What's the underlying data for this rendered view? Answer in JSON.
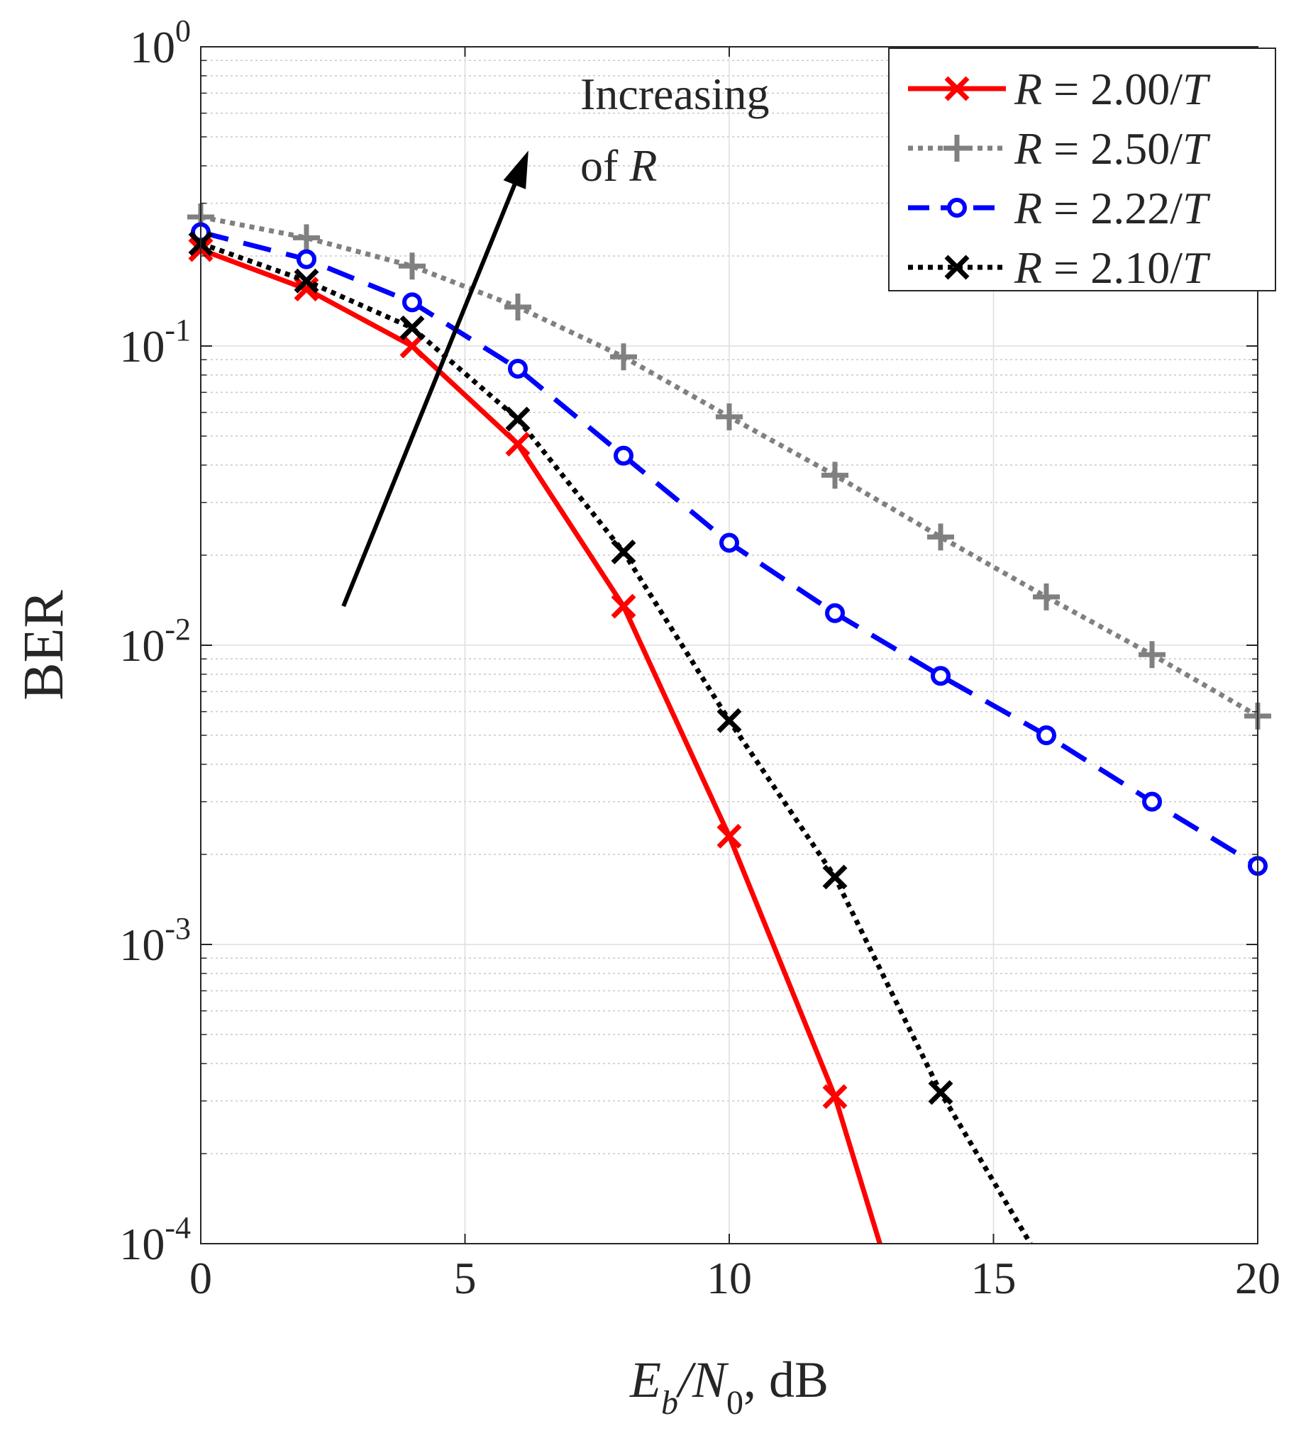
{
  "chart_data": {
    "type": "line",
    "title": "",
    "xlabel": {
      "main": "E",
      "sub1": "b",
      "slash": "/N",
      "sub2": "0",
      "unit": ", dB"
    },
    "ylabel": "BER",
    "xlim": [
      0,
      20
    ],
    "ylim": [
      0.0001,
      1
    ],
    "yscale": "log",
    "grid": true,
    "x_ticks": [
      "0",
      "5",
      "10",
      "15",
      "20"
    ],
    "x_tick_values": [
      0,
      5,
      10,
      15,
      20
    ],
    "y_ticks": [
      {
        "base": "10",
        "exp": "0",
        "value": 1
      },
      {
        "base": "10",
        "exp": "-1",
        "value": 0.1
      },
      {
        "base": "10",
        "exp": "-2",
        "value": 0.01
      },
      {
        "base": "10",
        "exp": "-3",
        "value": 0.001
      },
      {
        "base": "10",
        "exp": "-4",
        "value": 0.0001
      }
    ],
    "legend_position": "top-right",
    "annotation": {
      "line1": "Increasing",
      "line2_prefix": "of ",
      "line2_var": "R",
      "from": [
        2.7,
        0.0135
      ],
      "to": [
        6.2,
        0.45
      ]
    },
    "series": [
      {
        "name": "R = 2.00/T",
        "var": "R",
        "mid": " = 2.00/",
        "unit": "T",
        "color": "#ff0000",
        "dash": "solid",
        "marker": "x",
        "x": [
          0,
          2,
          4,
          6,
          8,
          10,
          12,
          12.85
        ],
        "y": [
          0.21,
          0.155,
          0.1,
          0.047,
          0.0135,
          0.0023,
          0.00031,
          0.0001
        ],
        "marked": [
          true,
          true,
          true,
          true,
          true,
          true,
          true,
          false
        ]
      },
      {
        "name": "R = 2.50/T",
        "var": "R",
        "mid": " = 2.50/",
        "unit": "T",
        "color": "#808080",
        "dash": "dotted",
        "marker": "+",
        "x": [
          0,
          2,
          4,
          6,
          8,
          10,
          12,
          14,
          16,
          18,
          20
        ],
        "y": [
          0.27,
          0.23,
          0.185,
          0.135,
          0.092,
          0.058,
          0.037,
          0.023,
          0.0145,
          0.0093,
          0.0058
        ],
        "marked": [
          true,
          true,
          true,
          true,
          true,
          true,
          true,
          true,
          true,
          true,
          true
        ]
      },
      {
        "name": "R = 2.22/T",
        "var": "R",
        "mid": " = 2.22/",
        "unit": "T",
        "color": "#0000ff",
        "dash": "dashed",
        "marker": "o",
        "x": [
          0,
          2,
          4,
          6,
          8,
          10,
          12,
          14,
          16,
          18,
          20
        ],
        "y": [
          0.24,
          0.195,
          0.14,
          0.084,
          0.043,
          0.022,
          0.0128,
          0.0079,
          0.005,
          0.003,
          0.00183
        ],
        "marked": [
          true,
          true,
          true,
          true,
          true,
          true,
          true,
          true,
          true,
          true,
          true
        ]
      },
      {
        "name": "R = 2.10/T",
        "var": "R",
        "mid": " = 2.10/",
        "unit": "T",
        "color": "#000000",
        "dash": "dotted",
        "marker": "x",
        "x": [
          0,
          2,
          4,
          6,
          8,
          10,
          12,
          14,
          15.7
        ],
        "y": [
          0.22,
          0.165,
          0.115,
          0.057,
          0.0205,
          0.0056,
          0.00168,
          0.00032,
          0.0001
        ],
        "marked": [
          true,
          true,
          true,
          true,
          true,
          true,
          true,
          true,
          false
        ]
      }
    ]
  }
}
